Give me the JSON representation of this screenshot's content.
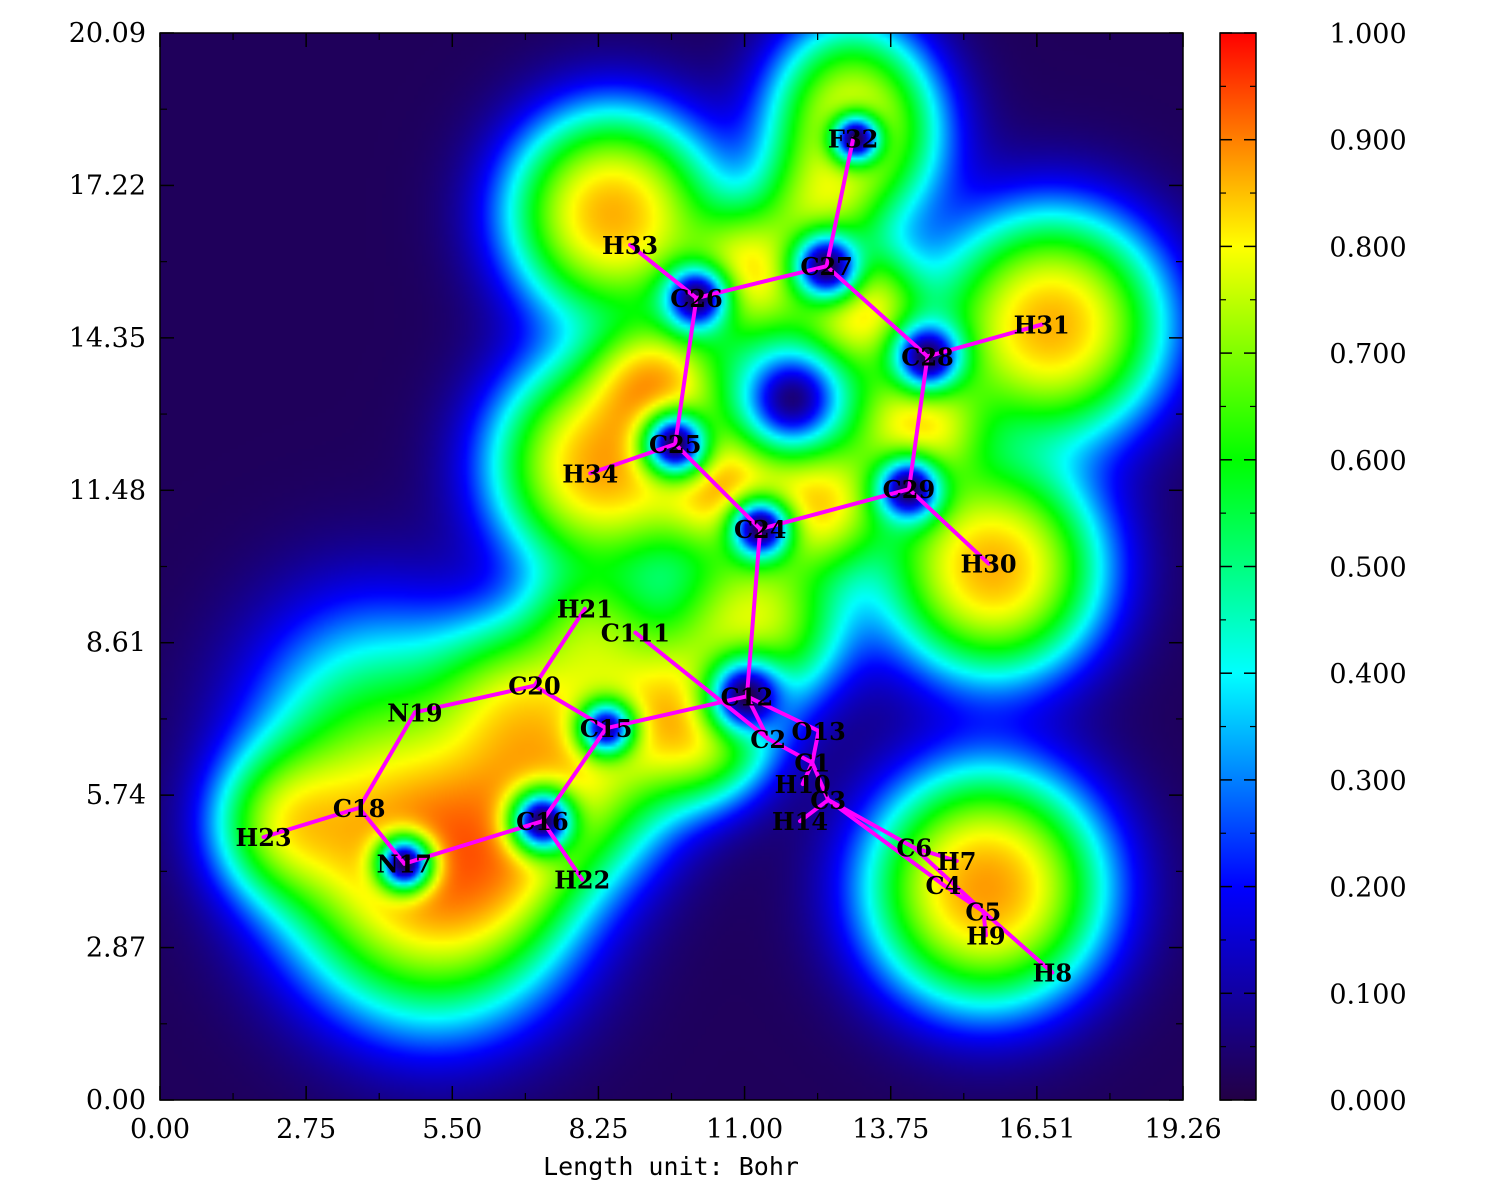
{
  "chart_data": {
    "type": "heatmap",
    "title": "",
    "xlabel": "Length unit: Bohr",
    "ylabel": "",
    "xlim": [
      0.0,
      19.26
    ],
    "ylim": [
      0.0,
      20.09
    ],
    "x_tick_labels": [
      "0.00",
      "2.75",
      "5.50",
      "8.25",
      "11.00",
      "13.75",
      "16.51",
      "19.26"
    ],
    "y_tick_labels": [
      "0.00",
      "2.87",
      "5.74",
      "8.61",
      "11.48",
      "14.35",
      "17.22",
      "20.09"
    ],
    "colorbar": {
      "range": [
        0.0,
        1.0
      ],
      "tick_labels": [
        "0.000",
        "0.100",
        "0.200",
        "0.300",
        "0.400",
        "0.500",
        "0.600",
        "0.700",
        "0.800",
        "0.900",
        "1.000"
      ],
      "colors": [
        "#230045",
        "#0000ff",
        "#00ffff",
        "#00ff00",
        "#ffff00",
        "#ff0000"
      ]
    },
    "grid": false,
    "atoms": [
      {
        "name": "C1",
        "x": 12.28,
        "y": 6.35
      },
      {
        "name": "C2",
        "x": 11.45,
        "y": 6.8
      },
      {
        "name": "C3",
        "x": 12.58,
        "y": 5.65
      },
      {
        "name": "C4",
        "x": 14.75,
        "y": 4.05
      },
      {
        "name": "C5",
        "x": 15.5,
        "y": 3.55
      },
      {
        "name": "C6",
        "x": 14.2,
        "y": 4.75
      },
      {
        "name": "H7",
        "x": 15.0,
        "y": 4.5
      },
      {
        "name": "H8",
        "x": 16.8,
        "y": 2.4
      },
      {
        "name": "H9",
        "x": 15.55,
        "y": 3.1
      },
      {
        "name": "H10",
        "x": 12.1,
        "y": 5.95
      },
      {
        "name": "C111",
        "x": 8.95,
        "y": 8.8
      },
      {
        "name": "C12",
        "x": 11.05,
        "y": 7.6
      },
      {
        "name": "O13",
        "x": 12.4,
        "y": 6.95
      },
      {
        "name": "H14",
        "x": 12.05,
        "y": 5.25
      },
      {
        "name": "C15",
        "x": 8.4,
        "y": 7.0
      },
      {
        "name": "C16",
        "x": 7.2,
        "y": 5.25
      },
      {
        "name": "N17",
        "x": 4.6,
        "y": 4.45
      },
      {
        "name": "C18",
        "x": 3.75,
        "y": 5.5
      },
      {
        "name": "N19",
        "x": 4.8,
        "y": 7.3
      },
      {
        "name": "C20",
        "x": 7.05,
        "y": 7.8
      },
      {
        "name": "H21",
        "x": 8.0,
        "y": 9.25
      },
      {
        "name": "H22",
        "x": 7.95,
        "y": 4.15
      },
      {
        "name": "H23",
        "x": 1.95,
        "y": 4.95
      },
      {
        "name": "C24",
        "x": 11.3,
        "y": 10.75
      },
      {
        "name": "C25",
        "x": 9.7,
        "y": 12.35
      },
      {
        "name": "C26",
        "x": 10.1,
        "y": 15.1
      },
      {
        "name": "C27",
        "x": 12.55,
        "y": 15.7
      },
      {
        "name": "C28",
        "x": 14.45,
        "y": 14.0
      },
      {
        "name": "C29",
        "x": 14.1,
        "y": 11.5
      },
      {
        "name": "H30",
        "x": 15.6,
        "y": 10.1
      },
      {
        "name": "H31",
        "x": 16.6,
        "y": 14.6
      },
      {
        "name": "F32",
        "x": 13.05,
        "y": 18.1
      },
      {
        "name": "H33",
        "x": 8.85,
        "y": 16.1
      },
      {
        "name": "H34",
        "x": 8.1,
        "y": 11.8
      }
    ],
    "bonds": [
      [
        "C1",
        "C2"
      ],
      [
        "C1",
        "C3"
      ],
      [
        "C1",
        "O13"
      ],
      [
        "C1",
        "H10"
      ],
      [
        "C2",
        "C12"
      ],
      [
        "C2",
        "C111"
      ],
      [
        "C3",
        "C4"
      ],
      [
        "C3",
        "C6"
      ],
      [
        "C3",
        "H14"
      ],
      [
        "C4",
        "C5"
      ],
      [
        "C6",
        "C5"
      ],
      [
        "C6",
        "H7"
      ],
      [
        "C5",
        "H9"
      ],
      [
        "C5",
        "H8"
      ],
      [
        "C12",
        "O13"
      ],
      [
        "C12",
        "C15"
      ],
      [
        "C12",
        "C24"
      ],
      [
        "C15",
        "C20"
      ],
      [
        "C15",
        "C16"
      ],
      [
        "C16",
        "N17"
      ],
      [
        "C16",
        "H22"
      ],
      [
        "N17",
        "C18"
      ],
      [
        "C18",
        "N19"
      ],
      [
        "C18",
        "H23"
      ],
      [
        "N19",
        "C20"
      ],
      [
        "C20",
        "H21"
      ],
      [
        "C24",
        "C25"
      ],
      [
        "C24",
        "C29"
      ],
      [
        "C25",
        "C26"
      ],
      [
        "C25",
        "H34"
      ],
      [
        "C26",
        "C27"
      ],
      [
        "C26",
        "H33"
      ],
      [
        "C27",
        "C28"
      ],
      [
        "C27",
        "F32"
      ],
      [
        "C28",
        "C29"
      ],
      [
        "C28",
        "H31"
      ],
      [
        "C29",
        "H30"
      ]
    ],
    "field": {
      "background": 0.015,
      "blobs": [
        {
          "x": 5.2,
          "y": 3.9,
          "s": 1.55,
          "a": 0.9
        },
        {
          "x": 4.2,
          "y": 5.3,
          "s": 1.5,
          "a": 0.55
        },
        {
          "x": 4.0,
          "y": 7.4,
          "s": 1.5,
          "a": 0.3
        },
        {
          "x": 2.4,
          "y": 5.2,
          "s": 0.85,
          "a": 0.6
        },
        {
          "x": 6.0,
          "y": 4.6,
          "s": 1.0,
          "a": 0.55
        },
        {
          "x": 7.6,
          "y": 6.0,
          "s": 1.2,
          "a": 0.8
        },
        {
          "x": 6.7,
          "y": 7.5,
          "s": 1.0,
          "a": 0.6
        },
        {
          "x": 8.1,
          "y": 8.9,
          "s": 0.8,
          "a": 0.5
        },
        {
          "x": 9.4,
          "y": 7.4,
          "s": 1.0,
          "a": 0.75
        },
        {
          "x": 10.3,
          "y": 6.9,
          "s": 0.8,
          "a": 0.55
        },
        {
          "x": 11.2,
          "y": 9.0,
          "s": 1.0,
          "a": 0.85
        },
        {
          "x": 10.6,
          "y": 11.5,
          "s": 0.7,
          "a": 0.8
        },
        {
          "x": 12.4,
          "y": 11.2,
          "s": 0.75,
          "a": 0.8
        },
        {
          "x": 9.3,
          "y": 13.5,
          "s": 0.7,
          "a": 0.8
        },
        {
          "x": 11.1,
          "y": 15.6,
          "s": 0.75,
          "a": 0.8
        },
        {
          "x": 13.2,
          "y": 14.9,
          "s": 0.7,
          "a": 0.8
        },
        {
          "x": 14.3,
          "y": 12.7,
          "s": 0.75,
          "a": 0.8
        },
        {
          "x": 11.9,
          "y": 13.2,
          "s": 1.9,
          "a": 0.45
        },
        {
          "x": 8.3,
          "y": 11.95,
          "s": 1.2,
          "a": 1.2
        },
        {
          "x": 8.5,
          "y": 16.7,
          "s": 1.15,
          "a": 1.2
        },
        {
          "x": 16.8,
          "y": 14.6,
          "s": 1.25,
          "a": 1.2
        },
        {
          "x": 15.7,
          "y": 10.0,
          "s": 1.2,
          "a": 1.2
        },
        {
          "x": 15.55,
          "y": 4.0,
          "s": 1.3,
          "a": 1.3
        },
        {
          "x": 13.1,
          "y": 18.1,
          "s": 1.0,
          "a": 0.8
        },
        {
          "x": 13.0,
          "y": 19.2,
          "s": 0.9,
          "a": 0.35
        },
        {
          "x": 12.4,
          "y": 16.8,
          "s": 0.7,
          "a": 0.5
        }
      ],
      "holes": [
        {
          "x": 11.9,
          "y": 13.2,
          "s": 0.6,
          "a": 0.9
        },
        {
          "x": 4.6,
          "y": 4.45,
          "s": 0.35,
          "a": 1.0
        },
        {
          "x": 11.3,
          "y": 10.75,
          "s": 0.38,
          "a": 1.0
        },
        {
          "x": 9.7,
          "y": 12.35,
          "s": 0.4,
          "a": 1.0
        },
        {
          "x": 10.1,
          "y": 15.1,
          "s": 0.4,
          "a": 1.0
        },
        {
          "x": 12.55,
          "y": 15.7,
          "s": 0.42,
          "a": 1.0
        },
        {
          "x": 14.45,
          "y": 14.0,
          "s": 0.42,
          "a": 1.0
        },
        {
          "x": 14.1,
          "y": 11.5,
          "s": 0.4,
          "a": 1.0
        },
        {
          "x": 11.05,
          "y": 7.6,
          "s": 0.5,
          "a": 1.0
        },
        {
          "x": 7.2,
          "y": 5.25,
          "s": 0.4,
          "a": 1.0
        },
        {
          "x": 8.4,
          "y": 7.0,
          "s": 0.35,
          "a": 0.9
        },
        {
          "x": 13.1,
          "y": 18.1,
          "s": 0.32,
          "a": 1.0
        }
      ]
    }
  }
}
